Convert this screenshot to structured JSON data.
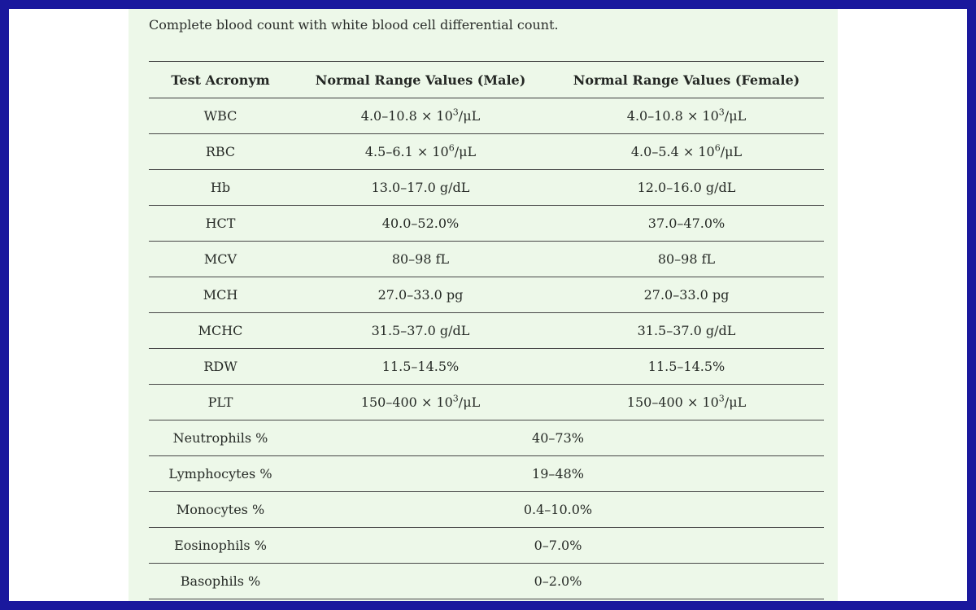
{
  "caption": "Complete blood count with white blood cell differential count.",
  "table": {
    "headers": [
      "Test Acronym",
      "Normal Range Values (Male)",
      "Normal Range Values (Female)"
    ],
    "rows": [
      {
        "cells": [
          "WBC",
          "4.0–10.8 × 10^3/μL",
          "4.0–10.8 × 10^3/μL"
        ]
      },
      {
        "cells": [
          "RBC",
          "4.5–6.1 × 10^6/μL",
          "4.0–5.4 × 10^6/μL"
        ]
      },
      {
        "cells": [
          "Hb",
          "13.0–17.0 g/dL",
          "12.0–16.0 g/dL"
        ]
      },
      {
        "cells": [
          "HCT",
          "40.0–52.0%",
          "37.0–47.0%"
        ]
      },
      {
        "cells": [
          "MCV",
          "80–98 fL",
          "80–98 fL"
        ]
      },
      {
        "cells": [
          "MCH",
          "27.0–33.0 pg",
          "27.0–33.0 pg"
        ]
      },
      {
        "cells": [
          "MCHC",
          "31.5–37.0 g/dL",
          "31.5–37.0 g/dL"
        ]
      },
      {
        "cells": [
          "RDW",
          "11.5–14.5%",
          "11.5–14.5%"
        ]
      },
      {
        "cells": [
          "PLT",
          "150–400 × 10^3/μL",
          "150–400 × 10^3/μL"
        ]
      },
      {
        "cells": [
          "Neutrophils %",
          "40–73%"
        ],
        "span": [
          1,
          2
        ]
      },
      {
        "cells": [
          "Lymphocytes %",
          "19–48%"
        ],
        "span": [
          1,
          2
        ]
      },
      {
        "cells": [
          "Monocytes %",
          "0.4–10.0%"
        ],
        "span": [
          1,
          2
        ]
      },
      {
        "cells": [
          "Eosinophils %",
          "0–7.0%"
        ],
        "span": [
          1,
          2
        ]
      },
      {
        "cells": [
          "Basophils %",
          "0–2.0%"
        ],
        "span": [
          1,
          2
        ]
      }
    ]
  },
  "colors": {
    "border_blue": "#1a189d",
    "panel_green": "#edf8e9",
    "text": "#262626",
    "rule_line": "#424242"
  }
}
